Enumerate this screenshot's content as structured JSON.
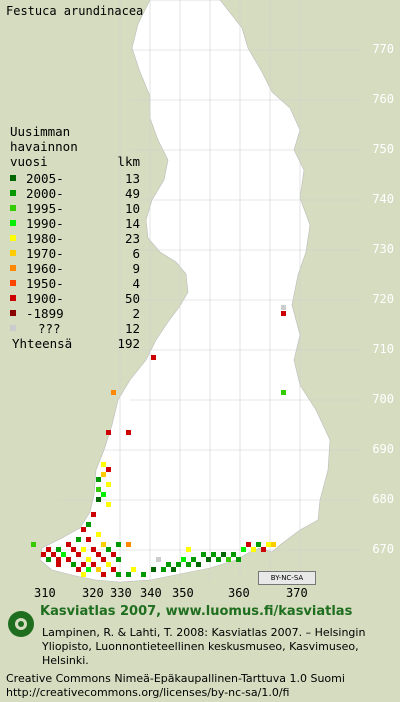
{
  "title": "Festuca arundinacea",
  "grid_y_labels": [
    "770",
    "760",
    "750",
    "740",
    "730",
    "720",
    "710",
    "700",
    "690",
    "680",
    "670"
  ],
  "grid_x_labels": [
    "310",
    "320",
    "330",
    "340",
    "350",
    "360",
    "370"
  ],
  "legend": {
    "header": [
      "Uusimman",
      "havainnon",
      "vuosi"
    ],
    "count_header": "lkm",
    "items": [
      {
        "label": "2005-",
        "count": "13",
        "color": "#006600"
      },
      {
        "label": "2000-",
        "count": "49",
        "color": "#009900"
      },
      {
        "label": "1995-",
        "count": "10",
        "color": "#33cc00"
      },
      {
        "label": "1990-",
        "count": "14",
        "color": "#00ee00"
      },
      {
        "label": "1980-",
        "count": "23",
        "color": "#ffff00"
      },
      {
        "label": "1970-",
        "count": "6",
        "color": "#ffcc00"
      },
      {
        "label": "1960-",
        "count": "9",
        "color": "#ff8800"
      },
      {
        "label": "1950-",
        "count": "4",
        "color": "#ff4400"
      },
      {
        "label": "1900-",
        "count": "50",
        "color": "#cc0000"
      },
      {
        "label": "-1899",
        "count": "2",
        "color": "#880000"
      },
      {
        "label": "???",
        "count": "12",
        "color": "#cccccc"
      }
    ],
    "total_label": "Yhteensä",
    "total_count": "192"
  },
  "license_badge": "BY-NC-SA",
  "credits": {
    "line1": "Kasviatlas 2007, www.luomus.fi/kasviatlas",
    "line2": "Lampinen, R. & Lahti, T. 2008: Kasviatlas 2007. – Helsingin Yliopisto, Luonnontieteellinen keskusmuseo, Kasvimuseo, Helsinki.",
    "line3": "Creative Commons Nimeä-Epäkaupallinen-Tarttuva 1.0 Suomi http://creativecommons.org/licenses/by-nc-sa/1.0/fi"
  },
  "colors": {
    "land": "#ffffff",
    "sea": "#d6dcc0",
    "grid": "#cfcfcf"
  }
}
